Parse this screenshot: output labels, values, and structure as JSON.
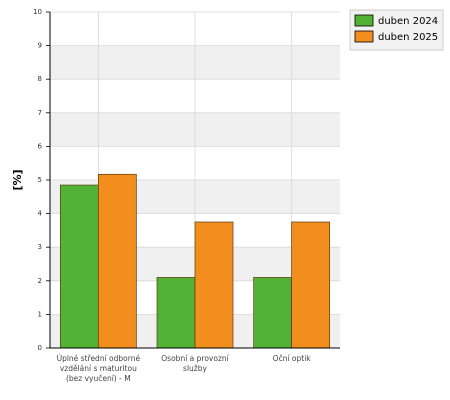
{
  "chart_data": {
    "type": "bar",
    "y_label": "[%]",
    "categories": [
      "Úplné střední odborné vzdělání s maturitou (bez vyučení) - M",
      "Osobní a provozní služby",
      "Oční optik"
    ],
    "series": [
      {
        "name": "duben 2024",
        "color": "#52b236",
        "values": [
          4.85,
          2.1,
          2.1
        ]
      },
      {
        "name": "duben 2025",
        "color": "#f28e1d",
        "values": [
          5.17,
          3.75,
          3.75
        ]
      }
    ],
    "ylim": [
      0,
      10
    ],
    "yticks": [
      0,
      1,
      2,
      3,
      4,
      5,
      6,
      7,
      8,
      9,
      10
    ],
    "grid": true,
    "legend": "top-right"
  }
}
